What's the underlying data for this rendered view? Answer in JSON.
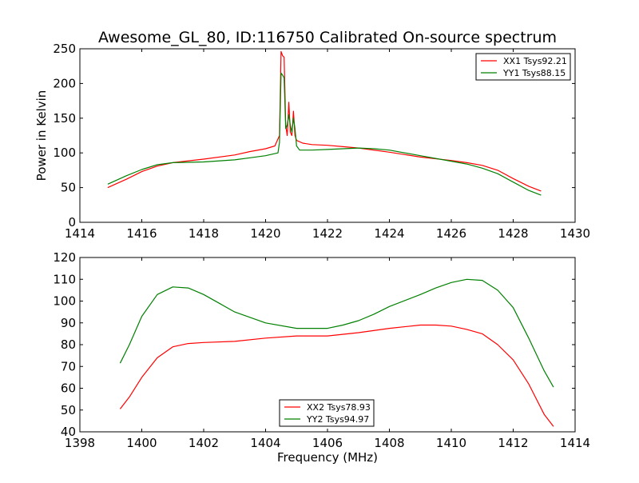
{
  "chart_data": [
    {
      "type": "line",
      "title": "Awesome_GL_80, ID:116750 Calibrated On-source spectrum",
      "xlabel": "",
      "ylabel": "Power in Kelvin",
      "xlim": [
        1414,
        1430
      ],
      "ylim": [
        0,
        250
      ],
      "xticks": [
        "1414",
        "1416",
        "1418",
        "1420",
        "1422",
        "1424",
        "1426",
        "1428",
        "1430"
      ],
      "yticks": [
        "0",
        "50",
        "100",
        "150",
        "200",
        "250"
      ],
      "legend_position": "top-right",
      "grid": false,
      "series": [
        {
          "name": "XX1 Tsys92.21",
          "color": "#ff0000",
          "points": [
            [
              1414.9,
              50
            ],
            [
              1415.5,
              62
            ],
            [
              1416,
              73
            ],
            [
              1416.5,
              81
            ],
            [
              1417,
              86
            ],
            [
              1418,
              91
            ],
            [
              1419,
              97
            ],
            [
              1419.5,
              102
            ],
            [
              1420,
              106
            ],
            [
              1420.3,
              110
            ],
            [
              1420.45,
              125
            ],
            [
              1420.5,
              246
            ],
            [
              1420.55,
              240
            ],
            [
              1420.6,
              238
            ],
            [
              1420.65,
              140
            ],
            [
              1420.7,
              125
            ],
            [
              1420.75,
              173
            ],
            [
              1420.8,
              130
            ],
            [
              1420.85,
              125
            ],
            [
              1420.9,
              160
            ],
            [
              1420.95,
              125
            ],
            [
              1421,
              118
            ],
            [
              1421.2,
              114
            ],
            [
              1421.5,
              112
            ],
            [
              1422,
              111
            ],
            [
              1422.5,
              109
            ],
            [
              1423,
              107
            ],
            [
              1424,
              101
            ],
            [
              1425,
              94
            ],
            [
              1426,
              89
            ],
            [
              1426.5,
              86
            ],
            [
              1427,
              82
            ],
            [
              1427.5,
              75
            ],
            [
              1428,
              63
            ],
            [
              1428.5,
              52
            ],
            [
              1428.9,
              45
            ]
          ]
        },
        {
          "name": "YY1 Tsys88.15",
          "color": "#008000",
          "points": [
            [
              1414.9,
              55
            ],
            [
              1415.5,
              67
            ],
            [
              1416,
              76
            ],
            [
              1416.5,
              83
            ],
            [
              1417,
              86
            ],
            [
              1418,
              87
            ],
            [
              1419,
              90
            ],
            [
              1419.5,
              93
            ],
            [
              1420,
              96
            ],
            [
              1420.4,
              100
            ],
            [
              1420.45,
              115
            ],
            [
              1420.5,
              215
            ],
            [
              1420.55,
              212
            ],
            [
              1420.6,
              208
            ],
            [
              1420.65,
              135
            ],
            [
              1420.7,
              140
            ],
            [
              1420.75,
              155
            ],
            [
              1420.8,
              140
            ],
            [
              1420.85,
              130
            ],
            [
              1420.9,
              150
            ],
            [
              1420.95,
              135
            ],
            [
              1421,
              110
            ],
            [
              1421.1,
              104
            ],
            [
              1421.5,
              104
            ],
            [
              1422,
              105
            ],
            [
              1422.5,
              106
            ],
            [
              1423,
              107
            ],
            [
              1423.5,
              106
            ],
            [
              1424,
              104
            ],
            [
              1425,
              96
            ],
            [
              1426,
              88
            ],
            [
              1426.5,
              84
            ],
            [
              1427,
              78
            ],
            [
              1427.5,
              70
            ],
            [
              1428,
              58
            ],
            [
              1428.5,
              46
            ],
            [
              1428.9,
              39
            ]
          ]
        }
      ]
    },
    {
      "type": "line",
      "title": "",
      "xlabel": "Frequency (MHz)",
      "ylabel": "",
      "xlim": [
        1398,
        1414
      ],
      "ylim": [
        40,
        120
      ],
      "xticks": [
        "1398",
        "1400",
        "1402",
        "1404",
        "1406",
        "1408",
        "1410",
        "1412",
        "1414"
      ],
      "yticks": [
        "40",
        "50",
        "60",
        "70",
        "80",
        "90",
        "100",
        "110",
        "120"
      ],
      "legend_position": "bottom-center",
      "grid": false,
      "series": [
        {
          "name": "XX2 Tsys78.93",
          "color": "#ff0000",
          "points": [
            [
              1399.3,
              50.5
            ],
            [
              1399.6,
              56
            ],
            [
              1400,
              65
            ],
            [
              1400.5,
              74
            ],
            [
              1401,
              79
            ],
            [
              1401.5,
              80.5
            ],
            [
              1402,
              81
            ],
            [
              1403,
              81.5
            ],
            [
              1404,
              83
            ],
            [
              1405,
              84
            ],
            [
              1406,
              84
            ],
            [
              1407,
              85.5
            ],
            [
              1408,
              87.5
            ],
            [
              1409,
              89
            ],
            [
              1409.5,
              89
            ],
            [
              1410,
              88.5
            ],
            [
              1410.5,
              87
            ],
            [
              1411,
              85
            ],
            [
              1411.5,
              80
            ],
            [
              1412,
              73
            ],
            [
              1412.5,
              62
            ],
            [
              1413,
              48
            ],
            [
              1413.3,
              42.5
            ]
          ]
        },
        {
          "name": "YY2 Tsys94.97",
          "color": "#008000",
          "points": [
            [
              1399.3,
              71.5
            ],
            [
              1399.6,
              80
            ],
            [
              1400,
              93
            ],
            [
              1400.5,
              103
            ],
            [
              1401,
              106.5
            ],
            [
              1401.5,
              106
            ],
            [
              1402,
              103
            ],
            [
              1402.5,
              99
            ],
            [
              1403,
              95
            ],
            [
              1404,
              90
            ],
            [
              1405,
              87.5
            ],
            [
              1406,
              87.5
            ],
            [
              1406.5,
              89
            ],
            [
              1407,
              91
            ],
            [
              1407.5,
              94
            ],
            [
              1408,
              97.5
            ],
            [
              1409,
              103
            ],
            [
              1409.5,
              106
            ],
            [
              1410,
              108.5
            ],
            [
              1410.5,
              110
            ],
            [
              1411,
              109.5
            ],
            [
              1411.5,
              105
            ],
            [
              1412,
              97
            ],
            [
              1412.5,
              83
            ],
            [
              1413,
              68
            ],
            [
              1413.3,
              60.5
            ]
          ]
        }
      ]
    }
  ]
}
